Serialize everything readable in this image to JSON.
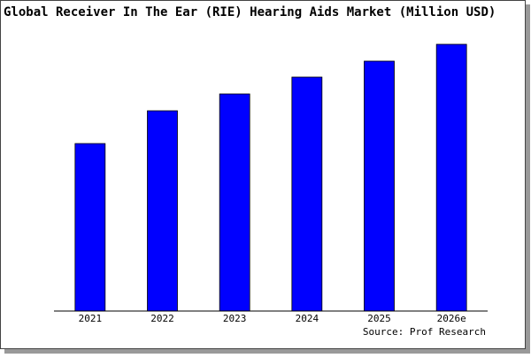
{
  "chart_data": {
    "type": "bar",
    "title": "Global Receiver In The Ear (RIE) Hearing Aids Market (Million USD)",
    "categories": [
      "2021",
      "2022",
      "2023",
      "2024",
      "2025",
      "2026e"
    ],
    "values": [
      189,
      226,
      245,
      264,
      282,
      301
    ],
    "color": "#0000ff",
    "ylim": [
      0,
      304
    ],
    "source": "Source: Prof Research"
  }
}
